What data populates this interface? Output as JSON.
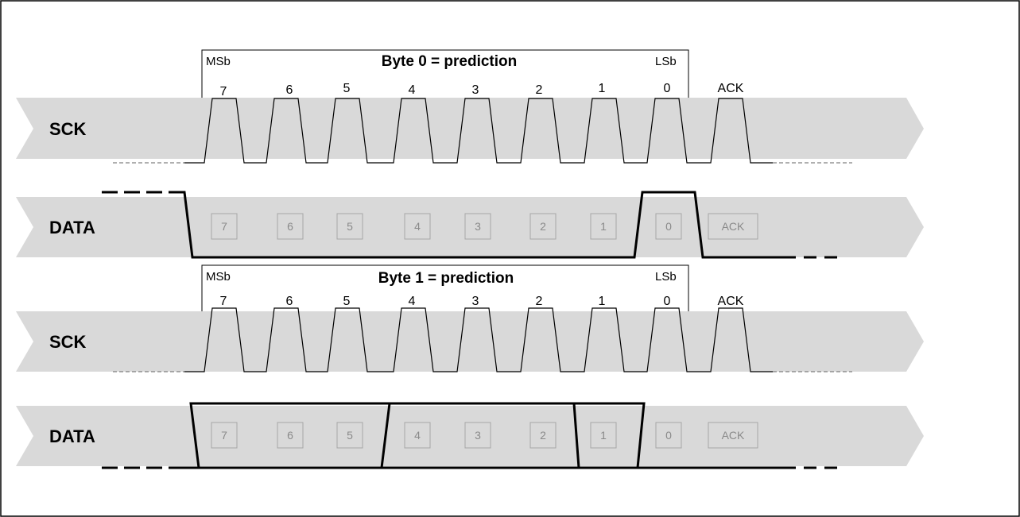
{
  "colors": {
    "lane_fill": "#d9d9d9",
    "frame": "#000000",
    "clock_line": "#000000",
    "data_line": "#000000",
    "dashed_idle": "#808080",
    "bit_box_border": "#a6a6a6",
    "bit_box_text": "#8a8a8a"
  },
  "frames": [
    {
      "header": {
        "msb": "MSb",
        "title": "Byte 0 = prediction",
        "lsb": "LSb"
      },
      "sck": {
        "label": "SCK",
        "bits": [
          "7",
          "6",
          "5",
          "4",
          "3",
          "2",
          "1",
          "0"
        ],
        "ack": "ACK"
      },
      "data": {
        "label": "DATA",
        "boxes": [
          "7",
          "6",
          "5",
          "4",
          "3",
          "2",
          "1",
          "0",
          "ACK"
        ],
        "levels": [
          0,
          0,
          0,
          0,
          0,
          0,
          0,
          1,
          0
        ],
        "initial_level": 1,
        "final_level": 0
      }
    },
    {
      "header": {
        "msb": "MSb",
        "title": "Byte 1 = prediction",
        "lsb": "LSb"
      },
      "sck": {
        "label": "SCK",
        "bits": [
          "7",
          "6",
          "5",
          "4",
          "3",
          "2",
          "1",
          "0"
        ],
        "ack": "ACK"
      },
      "data": {
        "label": "DATA",
        "boxes": [
          "7",
          "6",
          "5",
          "4",
          "3",
          "2",
          "1",
          "0",
          "ACK"
        ],
        "levels": [
          1,
          1,
          1,
          0,
          0,
          0,
          1,
          0,
          0
        ],
        "initial_level": 0,
        "final_level": 0
      }
    }
  ]
}
